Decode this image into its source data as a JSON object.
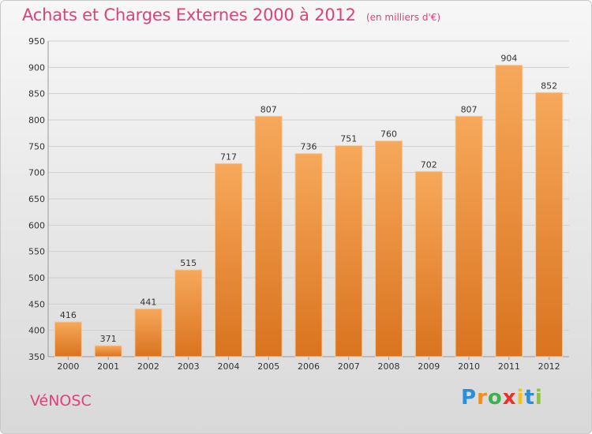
{
  "header": {
    "title": "Achats et Charges Externes 2000 à 2012",
    "subtitle": "(en milliers d'€)"
  },
  "footer": {
    "commune": "VéNOSC",
    "logo_letters": [
      "P",
      "r",
      "o",
      "x",
      "i",
      "t",
      "i"
    ],
    "logo_colors": [
      "#2a8fd8",
      "#f28c1e",
      "#3bb34a",
      "#e8322b",
      "#f2c21e",
      "#2a8fd8",
      "#8bc34a"
    ]
  },
  "colors": {
    "bar_top": "#f7a85a",
    "bar_bottom": "#d9731f",
    "bar_stroke": "#f4c99a",
    "grid": "#d0d0d0",
    "accent": "#e0407b"
  },
  "chart_data": {
    "type": "bar",
    "title": "Achats et Charges Externes 2000 à 2012",
    "subtitle": "(en milliers d'€)",
    "categories": [
      "2000",
      "2001",
      "2002",
      "2003",
      "2004",
      "2005",
      "2006",
      "2007",
      "2008",
      "2009",
      "2010",
      "2011",
      "2012"
    ],
    "values": [
      416,
      371,
      441,
      515,
      717,
      807,
      736,
      751,
      760,
      702,
      807,
      904,
      852
    ],
    "ylim": [
      350,
      950
    ],
    "yticks": [
      350,
      400,
      450,
      500,
      550,
      600,
      650,
      700,
      750,
      800,
      850,
      900,
      950
    ],
    "grid": true
  }
}
